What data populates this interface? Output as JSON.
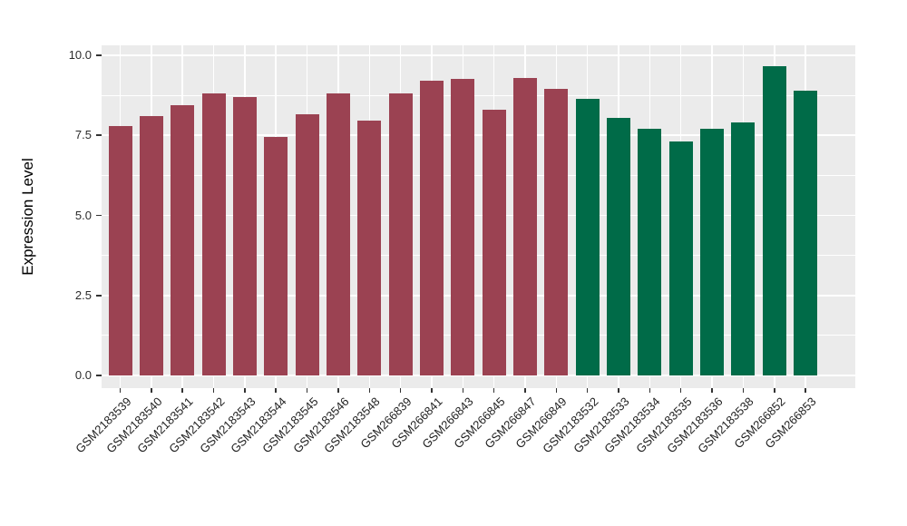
{
  "chart_data": {
    "type": "bar",
    "title": "",
    "xlabel": "",
    "ylabel": "Expression Level",
    "ylim": [
      0,
      10.15
    ],
    "yticks": [
      0.0,
      2.5,
      5.0,
      7.5,
      10.0
    ],
    "ytick_labels": [
      "0.0",
      "2.5",
      "5.0",
      "7.5",
      "10.0"
    ],
    "grid": "white major+minor horizontal and major vertical gridlines on gray panel",
    "legend_position": "none",
    "categories": [
      "GSM2183539",
      "GSM2183540",
      "GSM2183541",
      "GSM2183542",
      "GSM2183543",
      "GSM2183544",
      "GSM2183545",
      "GSM2183546",
      "GSM2183548",
      "GSM266839",
      "GSM266841",
      "GSM266843",
      "GSM266845",
      "GSM266847",
      "GSM266849",
      "GSM2183532",
      "GSM2183533",
      "GSM2183534",
      "GSM2183535",
      "GSM2183536",
      "GSM2183538",
      "GSM266852",
      "GSM266853"
    ],
    "values": [
      7.8,
      8.1,
      8.45,
      8.8,
      8.7,
      7.45,
      8.15,
      8.8,
      7.95,
      8.8,
      9.2,
      9.25,
      8.3,
      9.3,
      8.95,
      8.65,
      8.05,
      7.7,
      7.3,
      7.7,
      7.9,
      9.65,
      8.9
    ],
    "bar_group_index": [
      0,
      0,
      0,
      0,
      0,
      0,
      0,
      0,
      0,
      0,
      0,
      0,
      0,
      0,
      0,
      1,
      1,
      1,
      1,
      1,
      1,
      1,
      1
    ],
    "group_colors": [
      "#9B4252",
      "#006B48"
    ]
  },
  "style": {
    "panel_background": "#EBEBEB",
    "gridline_color": "#FFFFFF",
    "figure_background": "#FFFFFF",
    "tick_text_color": "#2b2b2b",
    "axis_title_color": "#000000"
  }
}
